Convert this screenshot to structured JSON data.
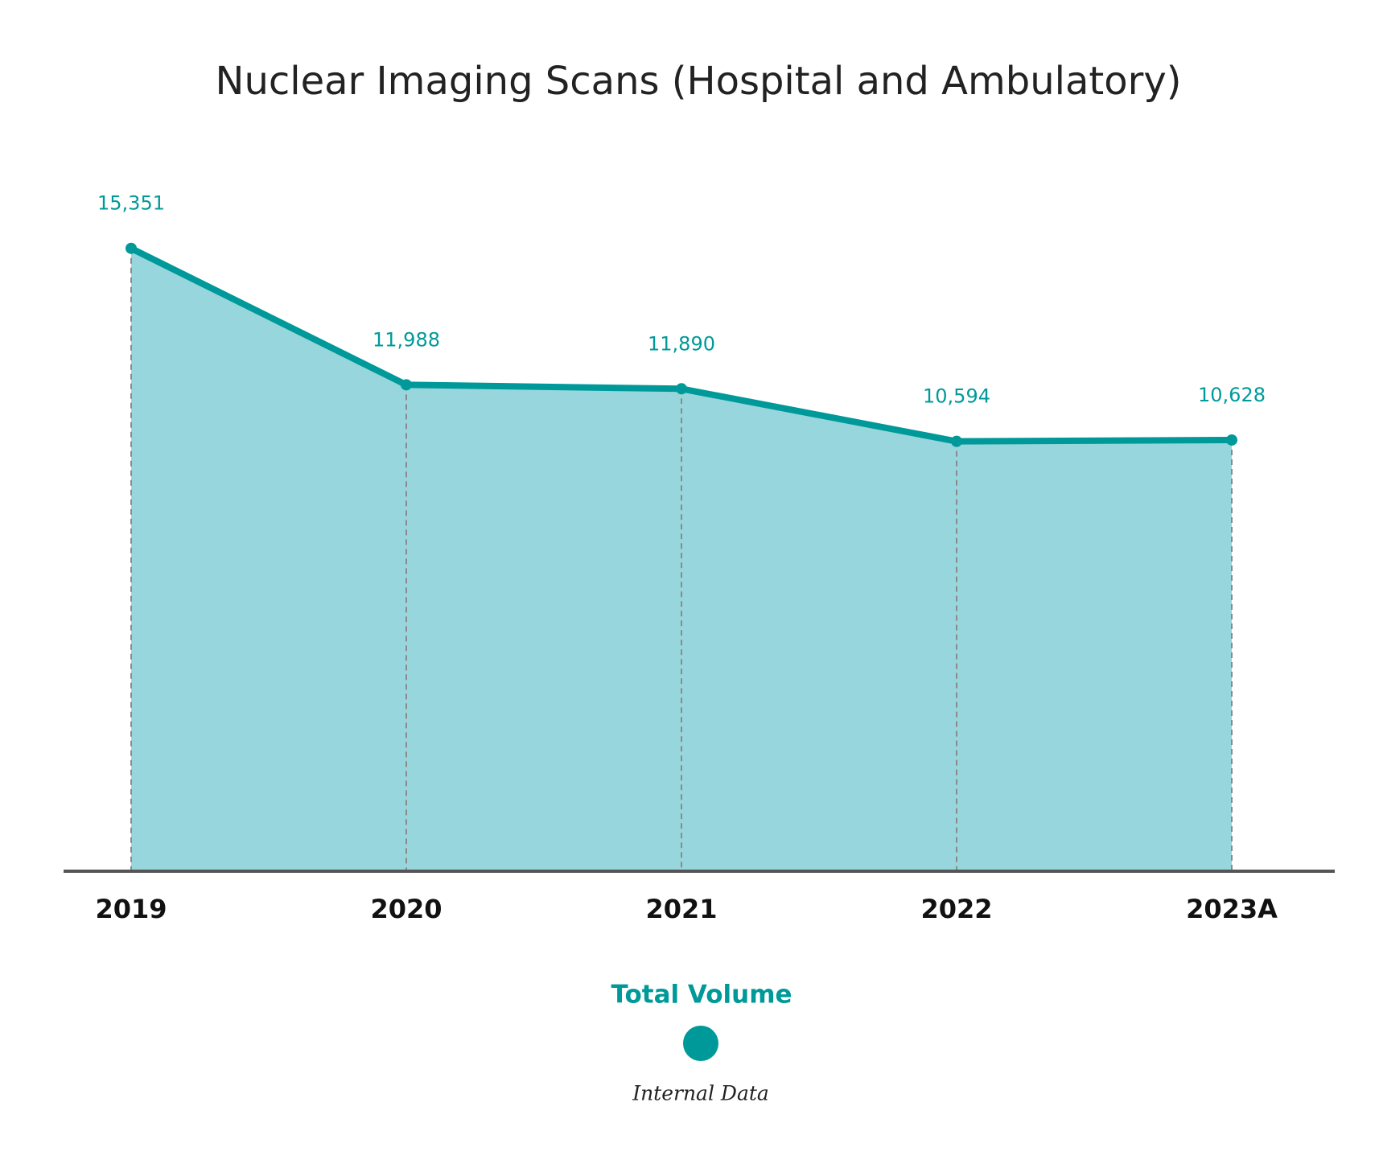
{
  "chart_data": {
    "type": "area",
    "title": "Nuclear Imaging Scans (Hospital and Ambulatory)",
    "categories": [
      "2019",
      "2020",
      "2021",
      "2022",
      "2023A"
    ],
    "series": [
      {
        "name": "Total Volume",
        "color": "#00999a",
        "fill": "#97d6dc",
        "values": [
          15351,
          11988,
          11890,
          10594,
          10628
        ],
        "value_labels": [
          "15,351",
          "11,988",
          "11,890",
          "10,594",
          "10,628"
        ]
      }
    ],
    "ylim": [
      0,
      16000
    ],
    "source": "Internal Data"
  }
}
